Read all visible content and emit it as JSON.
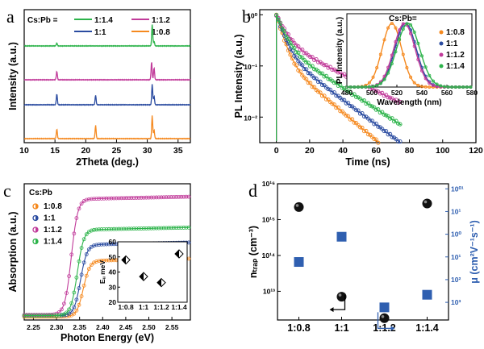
{
  "panels": {
    "a": {
      "letter": "a",
      "legend_title": "Cs:Pb =",
      "xlabel": "2Theta (deg.)",
      "ylabel": "Intensity (a.u.)",
      "xlim": [
        10,
        37
      ],
      "xticks": [
        "10",
        "15",
        "20",
        "25",
        "30",
        "35"
      ],
      "series": [
        {
          "name": "1:1.4",
          "color": "#2cb34a",
          "peaks": [
            [
              15.3,
              0.12
            ],
            [
              21.6,
              0.0
            ],
            [
              30.8,
              0.9
            ],
            [
              31.1,
              0.2
            ]
          ]
        },
        {
          "name": "1:1.2",
          "color": "#c13b9a",
          "peaks": [
            [
              15.3,
              0.35
            ],
            [
              21.6,
              0.0
            ],
            [
              30.7,
              0.75
            ],
            [
              31.1,
              0.5
            ]
          ]
        },
        {
          "name": "1:1",
          "color": "#2a4ba0",
          "peaks": [
            [
              15.3,
              0.45
            ],
            [
              21.6,
              0.4
            ],
            [
              30.8,
              0.85
            ],
            [
              31.1,
              0.35
            ]
          ]
        },
        {
          "name": "1:0.8",
          "color": "#f5891f",
          "peaks": [
            [
              15.3,
              0.4
            ],
            [
              21.6,
              0.55
            ],
            [
              30.8,
              0.95
            ],
            [
              31.1,
              0.35
            ]
          ]
        }
      ]
    },
    "b": {
      "letter": "b",
      "xlabel": "Time (ns)",
      "ylabel": "PL Intensity (a.u.)",
      "xlim": [
        -10,
        120
      ],
      "xticks": [
        "0",
        "20",
        "40",
        "60",
        "80",
        "100",
        "120"
      ],
      "yticks": [
        "10⁻²",
        "10⁻¹",
        "10⁰"
      ],
      "ylim_log": [
        -2.5,
        0.1
      ],
      "decays": [
        {
          "name": "1:0.8",
          "color": "#f5891f",
          "tau1": 3.5,
          "tau2": 16,
          "a": 0.85
        },
        {
          "name": "1:1",
          "color": "#2a4ba0",
          "tau1": 4,
          "tau2": 18,
          "a": 0.8
        },
        {
          "name": "1:1.2",
          "color": "#c13b9a",
          "tau1": 5,
          "tau2": 27,
          "a": 0.7
        },
        {
          "name": "1:1.4",
          "color": "#2cb34a",
          "tau1": 4.5,
          "tau2": 21,
          "a": 0.75
        }
      ],
      "inset": {
        "title": "Cs:Pb=",
        "xlabel": "Wavelength (nm)",
        "ylabel": "PL Intensity (a.u.)",
        "xlim": [
          480,
          580
        ],
        "xticks": [
          "480",
          "500",
          "520",
          "540",
          "560",
          "580"
        ],
        "series": [
          {
            "name": "1:0.8",
            "color": "#f5891f",
            "center": 516,
            "width": 11
          },
          {
            "name": "1:1",
            "color": "#2a4ba0",
            "center": 527,
            "width": 12
          },
          {
            "name": "1:1.2",
            "color": "#c13b9a",
            "center": 526,
            "width": 12
          },
          {
            "name": "1:1.4",
            "color": "#2cb34a",
            "center": 529,
            "width": 13
          }
        ]
      }
    },
    "c": {
      "letter": "c",
      "legend_title": "Cs:Pb",
      "xlabel": "Photon Energy (eV)",
      "ylabel": "Absorption (a.u.)",
      "xlim": [
        2.23,
        2.59
      ],
      "xticks": [
        "2.25",
        "2.30",
        "2.35",
        "2.40",
        "2.45",
        "2.50",
        "2.55"
      ],
      "series": [
        {
          "name": "1:0.8",
          "color": "#f5891f",
          "edge": 2.358,
          "plateau": 0.3,
          "offset": 0.0
        },
        {
          "name": "1:1",
          "color": "#2a4ba0",
          "edge": 2.352,
          "plateau": 0.38,
          "offset": 0.03
        },
        {
          "name": "1:1.2",
          "color": "#c13b9a",
          "edge": 2.332,
          "plateau": 0.62,
          "offset": 0.05
        },
        {
          "name": "1:1.4",
          "color": "#2cb34a",
          "edge": 2.345,
          "plateau": 0.46,
          "offset": 0.03
        }
      ],
      "inset": {
        "ylabel": "Eᵤ meV",
        "ylim": [
          20,
          60
        ],
        "yticks": [
          "20",
          "30",
          "40",
          "50",
          "60"
        ],
        "categories": [
          "1:0.8",
          "1:1",
          "1:1.2",
          "1:1.4"
        ],
        "values": [
          48,
          37,
          33,
          52
        ]
      }
    },
    "d": {
      "letter": "d",
      "categories": [
        "1:0.8",
        "1:1",
        "1:1.2",
        "1:1.4"
      ],
      "ylabel_left": "nₜᵣₐₚ (cm⁻³)",
      "ylabel_right": "μ (cm²V⁻¹s⁻¹)",
      "left_ticks": [
        "10¹³",
        "10¹⁴",
        "10¹⁵",
        "10¹⁶"
      ],
      "right_ticks": [
        "10³",
        "10²",
        "10¹",
        "10⁰",
        "10¹",
        "10⁰¹"
      ],
      "left_log_values": [
        15.35,
        12.85,
        12.25,
        15.45
      ],
      "right_log_values": [
        1.9,
        0.9,
        3.7,
        3.2
      ],
      "left_color": "#111111",
      "right_color": "#2f5fb0"
    }
  }
}
